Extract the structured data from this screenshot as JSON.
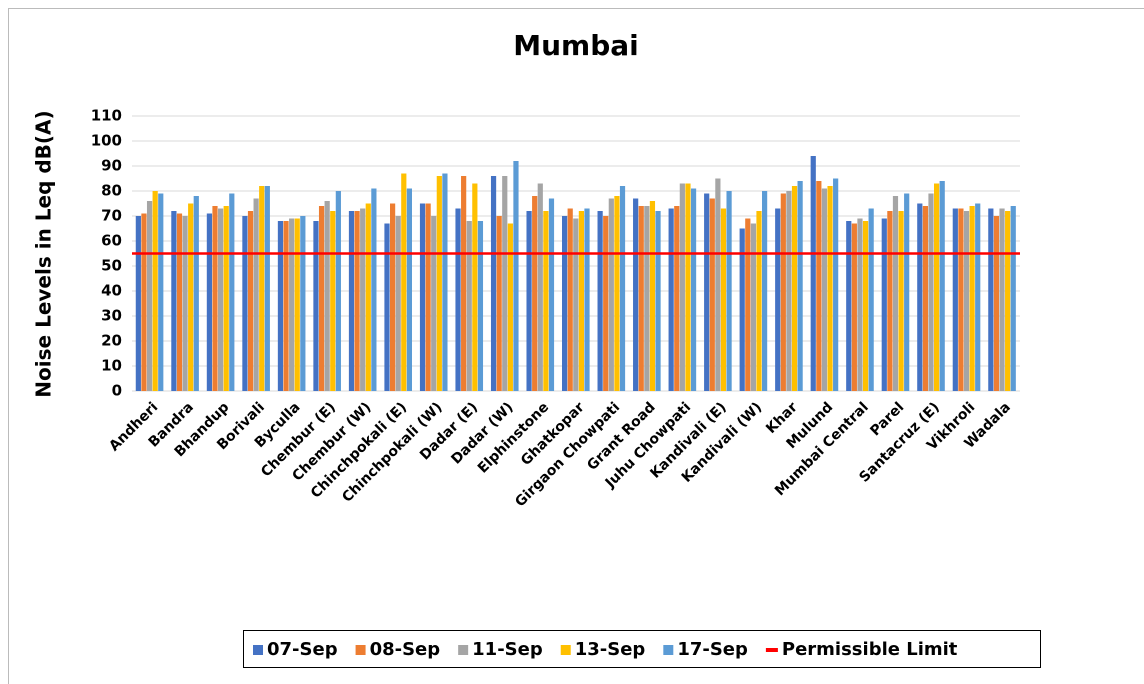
{
  "chart_data": {
    "type": "bar",
    "title": "Mumbai",
    "y_label": "Noise Levels in Leq dB(A)",
    "categories": [
      "Andheri",
      "Bandra",
      "Bhandup",
      "Borivali",
      "Byculla",
      "Chembur (E)",
      "Chembur (W)",
      "Chinchpokali (E)",
      "Chinchpokali (W)",
      "Dadar (E)",
      "Dadar (W)",
      "Elphinstone",
      "Ghatkopar",
      "Girgaon Chowpati",
      "Grant Road",
      "Juhu Chowpati",
      "Kandivali (E)",
      "Kandivali (W)",
      "Khar",
      "Mulund",
      "Mumbai Central",
      "Parel",
      "Santacruz (E)",
      "Vikhroli",
      "Wadala"
    ],
    "series": [
      {
        "name": "07-Sep",
        "color": "#4472c4",
        "values": [
          70,
          72,
          71,
          70,
          68,
          68,
          72,
          67,
          75,
          73,
          86,
          72,
          70,
          72,
          77,
          73,
          79,
          65,
          73,
          94,
          68,
          69,
          75,
          73,
          73
        ]
      },
      {
        "name": "08-Sep",
        "color": "#ed7d31",
        "values": [
          71,
          71,
          74,
          72,
          68,
          74,
          72,
          75,
          75,
          86,
          70,
          78,
          73,
          70,
          74,
          74,
          77,
          69,
          79,
          84,
          67,
          72,
          74,
          73,
          70
        ]
      },
      {
        "name": "11-Sep",
        "color": "#a5a5a5",
        "values": [
          76,
          70,
          73,
          77,
          69,
          76,
          73,
          70,
          70,
          68,
          86,
          83,
          69,
          77,
          74,
          83,
          85,
          67,
          80,
          81,
          69,
          78,
          79,
          72,
          73
        ]
      },
      {
        "name": "13-Sep",
        "color": "#ffc000",
        "values": [
          80,
          75,
          74,
          82,
          69,
          72,
          75,
          87,
          86,
          83,
          67,
          72,
          72,
          78,
          76,
          83,
          73,
          72,
          82,
          82,
          68,
          72,
          83,
          74,
          72
        ]
      },
      {
        "name": "17-Sep",
        "color": "#5b9bd5",
        "values": [
          79,
          78,
          79,
          82,
          70,
          80,
          81,
          81,
          87,
          68,
          92,
          77,
          73,
          82,
          72,
          81,
          80,
          80,
          84,
          85,
          73,
          79,
          84,
          75,
          74
        ]
      }
    ],
    "limit": {
      "name": "Permissible Limit",
      "value": 55,
      "color": "#ff0000"
    },
    "ylim": [
      0,
      110
    ],
    "yticks": [
      0,
      10,
      20,
      30,
      40,
      50,
      60,
      70,
      80,
      90,
      100,
      110
    ],
    "grid": true
  }
}
